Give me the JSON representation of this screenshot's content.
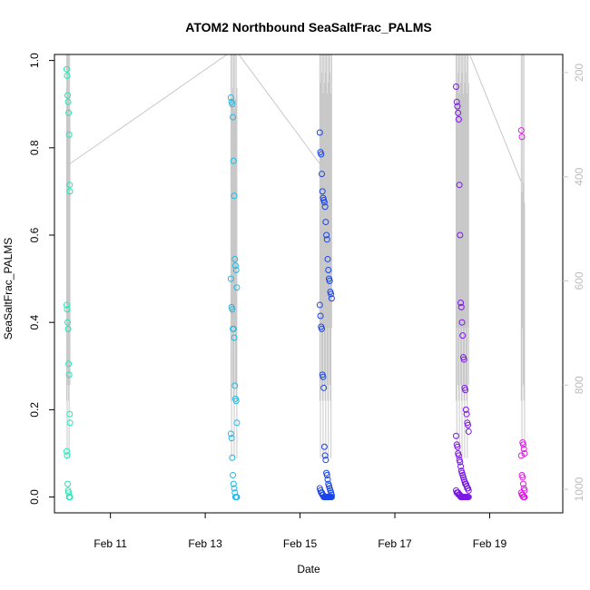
{
  "chart_data": {
    "type": "scatter",
    "title": "ATOM2 Northbound SeaSaltFrac_PALMS",
    "xlabel": "Date",
    "ylabel": "SeaSaltFrac_PALMS",
    "xlim": [
      "2017-02-09T19:40",
      "2017-02-20T13:00"
    ],
    "ylim": [
      -0.03,
      1.02
    ],
    "y_ticks": [
      "0.0",
      "0.2",
      "0.4",
      "0.6",
      "0.8",
      "1.0"
    ],
    "x_ticks": [
      {
        "date": "2017-02-11",
        "label": "Feb 11"
      },
      {
        "date": "2017-02-13",
        "label": "Feb 13"
      },
      {
        "date": "2017-02-15",
        "label": "Feb 15"
      },
      {
        "date": "2017-02-17",
        "label": "Feb 17"
      },
      {
        "date": "2017-02-19",
        "label": "Feb 19"
      }
    ],
    "y2_ticks": [
      "200",
      "400",
      "600",
      "800",
      "1000"
    ],
    "y2lim": [
      1040,
      160
    ],
    "y2_color": "#c8c8c8",
    "grid": false,
    "flights": [
      {
        "color": "#1de9b6",
        "pressure_min": 250,
        "pressure_max": 1010,
        "x": [
          "2017-02-10T01:50",
          "2017-02-10T02:05",
          "2017-02-10T02:20",
          "2017-02-10T02:35",
          "2017-02-10T02:50",
          "2017-02-10T03:05",
          "2017-02-10T03:20",
          "2017-02-10T03:30"
        ],
        "y": [
          [
            0.98,
            0.965,
            0.92,
            0.905,
            0.88,
            0.83,
            0.715,
            0.7
          ],
          [
            0.44,
            0.43,
            0.4,
            0.385,
            0.305,
            0.28,
            0.19,
            0.17
          ],
          [
            0.105,
            0.095,
            0.03,
            0.015,
            0.01,
            0.0,
            0.0,
            0.0
          ]
        ]
      },
      {
        "color": "#1fb9e6",
        "pressure_min": 230,
        "pressure_max": 1010,
        "x": [
          "2017-02-13T13:00",
          "2017-02-13T13:20",
          "2017-02-13T13:40",
          "2017-02-13T14:00",
          "2017-02-13T14:20",
          "2017-02-13T14:40",
          "2017-02-13T15:00",
          "2017-02-13T15:20",
          "2017-02-13T15:40",
          "2017-02-13T16:00"
        ],
        "y": [
          [
            0.915,
            0.905,
            0.9,
            0.87,
            0.77,
            0.69,
            0.545,
            0.53,
            0.52,
            0.48
          ],
          [
            0.5,
            0.435,
            0.43,
            0.385,
            0.385,
            0.365,
            0.255,
            0.225,
            0.22,
            0.17
          ],
          [
            0.145,
            0.135,
            0.09,
            0.05,
            0.03,
            0.02,
            0.01,
            0.0,
            0.0,
            0.0
          ]
        ]
      },
      {
        "color": "#1a45e8",
        "pressure_min": 200,
        "pressure_max": 1010,
        "x": [
          "2017-02-15T10:00",
          "2017-02-15T10:20",
          "2017-02-15T10:40",
          "2017-02-15T11:00",
          "2017-02-15T11:20",
          "2017-02-15T11:40",
          "2017-02-15T12:00",
          "2017-02-15T12:20",
          "2017-02-15T12:40",
          "2017-02-15T13:00",
          "2017-02-15T13:20",
          "2017-02-15T13:40",
          "2017-02-15T14:00",
          "2017-02-15T14:20",
          "2017-02-15T14:40",
          "2017-02-15T15:00",
          "2017-02-15T15:20",
          "2017-02-15T15:40",
          "2017-02-15T16:00"
        ],
        "y": [
          [
            0.835,
            0.79,
            0.785,
            0.74,
            0.7,
            0.685,
            0.68,
            0.675,
            0.665,
            0.63,
            0.6,
            0.59,
            0.545,
            0.52,
            0.5,
            0.495,
            0.47,
            0.465,
            0.455
          ],
          [
            0.44,
            0.415,
            0.39,
            0.385,
            0.28,
            0.275,
            0.25,
            0.115,
            0.095,
            0.085,
            0.055,
            0.05,
            0.04,
            0.03,
            0.025,
            0.02,
            0.015,
            0.01,
            0.005
          ],
          [
            0.02,
            0.015,
            0.01,
            0.01,
            0.005,
            0.005,
            0.0,
            0.0,
            0.0,
            0.0,
            0.0,
            0.0,
            0.0,
            0.0,
            0.0,
            0.0,
            0.0,
            0.0,
            0.0
          ]
        ]
      },
      {
        "color": "#7a19e6",
        "pressure_min": 200,
        "pressure_max": 1010,
        "x": [
          "2017-02-18T07:00",
          "2017-02-18T07:20",
          "2017-02-18T07:40",
          "2017-02-18T08:00",
          "2017-02-18T08:20",
          "2017-02-18T08:40",
          "2017-02-18T09:00",
          "2017-02-18T09:20",
          "2017-02-18T09:40",
          "2017-02-18T10:00",
          "2017-02-18T10:20",
          "2017-02-18T10:40",
          "2017-02-18T11:00",
          "2017-02-18T11:20",
          "2017-02-18T11:40",
          "2017-02-18T12:00",
          "2017-02-18T12:20",
          "2017-02-18T12:40",
          "2017-02-18T13:00",
          "2017-02-18T13:20"
        ],
        "y": [
          [
            0.94,
            0.905,
            0.895,
            0.88,
            0.865,
            0.715,
            0.6,
            0.445,
            0.435,
            0.4,
            0.37,
            0.32,
            0.315,
            0.25,
            0.245,
            0.2,
            0.19,
            0.17,
            0.165,
            0.15
          ],
          [
            0.14,
            0.12,
            0.115,
            0.1,
            0.095,
            0.085,
            0.08,
            0.07,
            0.06,
            0.055,
            0.05,
            0.045,
            0.04,
            0.035,
            0.03,
            0.03,
            0.025,
            0.02,
            0.02,
            0.015
          ],
          [
            0.015,
            0.01,
            0.01,
            0.01,
            0.005,
            0.005,
            0.005,
            0.0,
            0.0,
            0.0,
            0.0,
            0.0,
            0.0,
            0.0,
            0.0,
            0.0,
            0.0,
            0.0,
            0.0,
            0.0
          ]
        ]
      },
      {
        "color": "#df1ae6",
        "pressure_min": 410,
        "pressure_max": 1010,
        "x": [
          "2017-02-19T16:00",
          "2017-02-19T16:20",
          "2017-02-19T16:40",
          "2017-02-19T17:00",
          "2017-02-19T17:20",
          "2017-02-19T17:40"
        ],
        "y": [
          [
            0.84,
            0.825,
            0.125,
            0.12,
            0.11,
            0.1
          ],
          [
            0.095,
            0.05,
            0.045,
            0.03,
            0.02,
            0.015
          ],
          [
            0.01,
            0.005,
            0.005,
            0.0,
            0.0,
            0.0
          ]
        ]
      }
    ],
    "transits": [
      {
        "x": [
          "2017-02-10T03:30",
          "2017-02-13T13:00"
        ],
        "pressure": [
          375,
          160
        ]
      },
      {
        "x": [
          "2017-02-13T16:00",
          "2017-02-15T10:00"
        ],
        "pressure": [
          160,
          375
        ]
      },
      {
        "x": [
          "2017-02-15T16:00",
          "2017-02-18T07:00"
        ],
        "pressure": [
          160,
          160
        ]
      },
      {
        "x": [
          "2017-02-18T13:20",
          "2017-02-19T16:00"
        ],
        "pressure": [
          160,
          410
        ]
      }
    ]
  }
}
